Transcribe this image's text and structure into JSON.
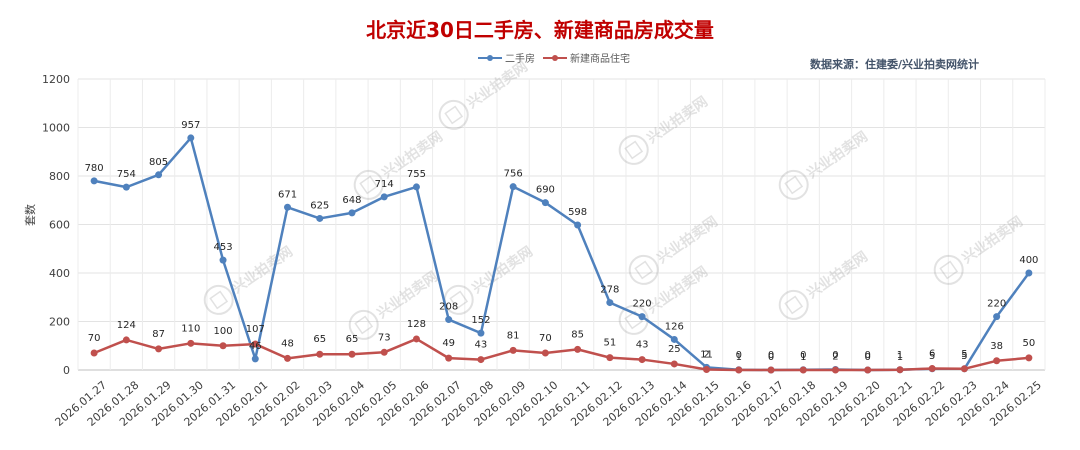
{
  "chart_data": {
    "type": "line",
    "title": "北京近30日二手房、新建商品房成交量",
    "source": "数据来源：住建委/兴业拍卖网统计",
    "ylabel": "套数",
    "ylim": [
      0,
      1200
    ],
    "yticks": [
      0,
      200,
      400,
      600,
      800,
      1000,
      1200
    ],
    "grid": true,
    "legend_position": "top-center",
    "categories": [
      "2026.01.27",
      "2026.01.28",
      "2026.01.29",
      "2026.01.30",
      "2026.01.31",
      "2026.02.01",
      "2026.02.02",
      "2026.02.03",
      "2026.02.04",
      "2026.02.05",
      "2026.02.06",
      "2026.02.07",
      "2026.02.08",
      "2026.02.09",
      "2026.02.10",
      "2026.02.11",
      "2026.02.12",
      "2026.02.13",
      "2026.02.14",
      "2026.02.15",
      "2026.02.16",
      "2026.02.17",
      "2026.02.18",
      "2026.02.19",
      "2026.02.20",
      "2026.02.21",
      "2026.02.22",
      "2026.02.23",
      "2026.02.24",
      "2026.02.25"
    ],
    "series": [
      {
        "name": "二手房",
        "color": "#4f81bd",
        "values": [
          780,
          754,
          805,
          957,
          453,
          46,
          671,
          625,
          648,
          714,
          755,
          208,
          152,
          756,
          690,
          598,
          278,
          220,
          126,
          11,
          1,
          0,
          1,
          2,
          0,
          1,
          5,
          5,
          220,
          400
        ]
      },
      {
        "name": "新建商品住宅",
        "color": "#c0504d",
        "values": [
          70,
          124,
          87,
          110,
          100,
          107,
          48,
          65,
          65,
          73,
          128,
          49,
          43,
          81,
          70,
          85,
          51,
          43,
          25,
          2,
          0,
          0,
          0,
          0,
          0,
          1,
          6,
          5,
          38,
          50
        ]
      }
    ]
  },
  "watermark": "兴业拍卖网"
}
